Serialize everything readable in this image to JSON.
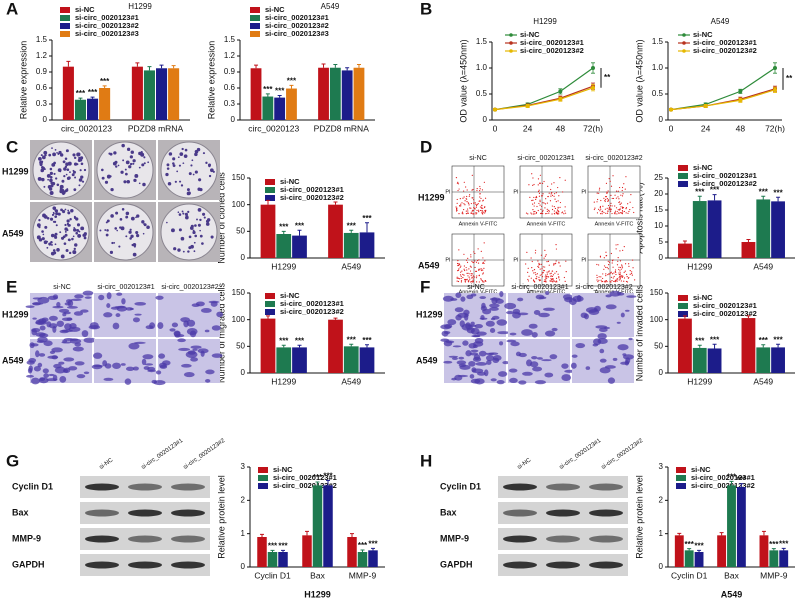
{
  "figure": {
    "panel_labels": [
      "A",
      "B",
      "C",
      "D",
      "E",
      "F",
      "G",
      "H"
    ],
    "colony_panel": {
      "rows": [
        "H1299",
        "A549"
      ]
    },
    "flow_panel": {
      "columns": [
        "si-NC",
        "si-circ_0020123#1",
        "si-circ_0020123#2"
      ],
      "rows": [
        "H1299",
        "A549"
      ],
      "x_axis": "Annexin V-FITC",
      "y_axis": "PI"
    },
    "migration_panel": {
      "columns": [
        "si-NC",
        "si-circ_0020123#1",
        "si-circ_0020123#2"
      ],
      "rows": [
        "H1299",
        "A549"
      ]
    },
    "invasion_panel": {
      "columns": [
        "si-NC",
        "si-circ_0020123#1",
        "si-circ_0020123#2"
      ],
      "rows": [
        "H1299",
        "A549"
      ]
    },
    "blot_panels": [
      {
        "lanes": [
          "si-NC",
          "si-circ_0020123#1",
          "si-circ_0020123#2"
        ],
        "proteins": [
          "Cyclin D1",
          "Bax",
          "MMP-9",
          "GAPDH"
        ]
      },
      {
        "lanes": [
          "si-NC",
          "si-circ_0020123#1",
          "si-circ_0020123#2"
        ],
        "proteins": [
          "Cyclin D1",
          "Bax",
          "MMP-9",
          "GAPDH"
        ]
      }
    ]
  },
  "chart_data": [
    {
      "type": "bar",
      "title": "H1299",
      "ylabel": "Relative expression",
      "categories": [
        "circ_0020123",
        "PDZD8 mRNA"
      ],
      "ylim": [
        0,
        1.5
      ],
      "yticks": [
        0,
        0.3,
        0.6,
        0.9,
        1.2,
        1.5
      ],
      "series": [
        {
          "name": "si-NC",
          "color": "#c0121a",
          "values": [
            1.0,
            1.0
          ],
          "errors": [
            0.1,
            0.07
          ]
        },
        {
          "name": "si-circ_0020123#1",
          "color": "#1e7a50",
          "values": [
            0.38,
            0.93
          ],
          "errors": [
            0.03,
            0.07
          ],
          "significance": [
            "***",
            null
          ]
        },
        {
          "name": "si-circ_0020123#2",
          "color": "#1c1c8a",
          "values": [
            0.4,
            0.97
          ],
          "errors": [
            0.03,
            0.06
          ],
          "significance": [
            "***",
            null
          ]
        },
        {
          "name": "si-circ_0020123#3",
          "color": "#e07b14",
          "values": [
            0.6,
            0.97
          ],
          "errors": [
            0.04,
            0.05
          ],
          "significance": [
            "***",
            null
          ]
        }
      ]
    },
    {
      "type": "bar",
      "title": "A549",
      "ylabel": "Relative expression",
      "categories": [
        "circ_0020123",
        "PDZD8 mRNA"
      ],
      "ylim": [
        0,
        1.5
      ],
      "yticks": [
        0,
        0.3,
        0.6,
        0.9,
        1.2,
        1.5
      ],
      "series": [
        {
          "name": "si-NC",
          "color": "#c0121a",
          "values": [
            0.97,
            0.98
          ],
          "errors": [
            0.06,
            0.07
          ]
        },
        {
          "name": "si-circ_0020123#1",
          "color": "#1e7a50",
          "values": [
            0.44,
            0.98
          ],
          "errors": [
            0.05,
            0.06
          ],
          "significance": [
            "***",
            null
          ]
        },
        {
          "name": "si-circ_0020123#2",
          "color": "#1c1c8a",
          "values": [
            0.42,
            0.93
          ],
          "errors": [
            0.04,
            0.05
          ],
          "significance": [
            "***",
            null
          ]
        },
        {
          "name": "si-circ_0020123#3",
          "color": "#e07b14",
          "values": [
            0.59,
            0.98
          ],
          "errors": [
            0.06,
            0.06
          ],
          "significance": [
            "***",
            null
          ]
        }
      ]
    },
    {
      "type": "line",
      "title": "H1299",
      "ylabel": "OD value (λ=450nm)",
      "categories": [
        "0",
        "24",
        "48",
        "72(h)"
      ],
      "ylim": [
        0,
        1.5
      ],
      "yticks": [
        0,
        0.5,
        {
          "value": 1.0,
          "label": "1.0"
        },
        1.5
      ],
      "annotation": "**",
      "series": [
        {
          "name": "si-NC",
          "color": "#2e8b3a",
          "values": [
            0.2,
            0.3,
            0.55,
            1.0
          ],
          "errors": [
            0.02,
            0.03,
            0.05,
            0.1
          ]
        },
        {
          "name": "si-circ_0020123#1",
          "color": "#b8321e",
          "values": [
            0.2,
            0.28,
            0.42,
            0.65
          ],
          "errors": [
            0.02,
            0.03,
            0.04,
            0.06
          ]
        },
        {
          "name": "si-circ_0020123#2",
          "color": "#e6b800",
          "values": [
            0.2,
            0.27,
            0.4,
            0.62
          ],
          "errors": [
            0.02,
            0.03,
            0.04,
            0.06
          ]
        }
      ]
    },
    {
      "type": "line",
      "title": "A549",
      "ylabel": "OD value (λ=450nm)",
      "categories": [
        "0",
        "24",
        "48",
        "72(h)"
      ],
      "ylim": [
        0,
        1.5
      ],
      "yticks": [
        0,
        0.5,
        {
          "value": 1.0,
          "label": "1.0"
        },
        1.5
      ],
      "annotation": "**",
      "series": [
        {
          "name": "si-NC",
          "color": "#2e8b3a",
          "values": [
            0.2,
            0.3,
            0.55,
            1.0
          ],
          "errors": [
            0.02,
            0.03,
            0.04,
            0.1
          ]
        },
        {
          "name": "si-circ_0020123#1",
          "color": "#b8321e",
          "values": [
            0.2,
            0.27,
            0.4,
            0.6
          ],
          "errors": [
            0.02,
            0.03,
            0.04,
            0.05
          ]
        },
        {
          "name": "si-circ_0020123#2",
          "color": "#e6b800",
          "values": [
            0.2,
            0.27,
            0.38,
            0.58
          ],
          "errors": [
            0.02,
            0.03,
            0.04,
            0.05
          ]
        }
      ]
    },
    {
      "type": "bar",
      "ylabel": "Number of cloned cells",
      "categories": [
        "H1299",
        "A549"
      ],
      "ylim": [
        0,
        150
      ],
      "yticks": [
        0,
        50,
        100,
        150
      ],
      "series": [
        {
          "name": "si-NC",
          "color": "#c0121a",
          "values": [
            100,
            100
          ],
          "errors": [
            8,
            5
          ]
        },
        {
          "name": "si-circ_0020123#1",
          "color": "#1e7a50",
          "values": [
            45,
            47
          ],
          "errors": [
            5,
            5
          ],
          "significance": [
            "***",
            "***"
          ]
        },
        {
          "name": "si-circ_0020123#2",
          "color": "#1c1c8a",
          "values": [
            42,
            48
          ],
          "errors": [
            10,
            18
          ],
          "significance": [
            "***",
            "***"
          ]
        }
      ]
    },
    {
      "type": "bar",
      "ylabel": "Apoptosis rate(%)",
      "categories": [
        "H1299",
        "A549"
      ],
      "ylim": [
        0,
        25
      ],
      "yticks": [
        0,
        5,
        10,
        15,
        20,
        25
      ],
      "series": [
        {
          "name": "si-NC",
          "color": "#c0121a",
          "values": [
            4.5,
            5.0
          ],
          "errors": [
            0.8,
            0.8
          ]
        },
        {
          "name": "si-circ_0020123#1",
          "color": "#1e7a50",
          "values": [
            17.8,
            18.3
          ],
          "errors": [
            1.5,
            1.0
          ],
          "significance": [
            "***",
            "***"
          ]
        },
        {
          "name": "si-circ_0020123#2",
          "color": "#1c1c8a",
          "values": [
            18.0,
            17.7
          ],
          "errors": [
            1.8,
            1.3
          ],
          "significance": [
            "***",
            "***"
          ]
        }
      ]
    },
    {
      "type": "bar",
      "ylabel": "Number of migrated cells",
      "categories": [
        "H1299",
        "A549"
      ],
      "ylim": [
        0,
        150
      ],
      "yticks": [
        0,
        50,
        100,
        150
      ],
      "series": [
        {
          "name": "si-NC",
          "color": "#c0121a",
          "values": [
            102,
            100
          ],
          "errors": [
            5,
            3
          ]
        },
        {
          "name": "si-circ_0020123#1",
          "color": "#1e7a50",
          "values": [
            48,
            50
          ],
          "errors": [
            4,
            4
          ],
          "significance": [
            "***",
            "***"
          ]
        },
        {
          "name": "si-circ_0020123#2",
          "color": "#1c1c8a",
          "values": [
            48,
            48
          ],
          "errors": [
            4,
            5
          ],
          "significance": [
            "***",
            "***"
          ]
        }
      ]
    },
    {
      "type": "bar",
      "ylabel": "Number of invaded cells",
      "categories": [
        "H1299",
        "A549"
      ],
      "ylim": [
        0,
        150
      ],
      "yticks": [
        0,
        50,
        100,
        150
      ],
      "series": [
        {
          "name": "si-NC",
          "color": "#c0121a",
          "values": [
            102,
            103
          ],
          "errors": [
            5,
            4
          ]
        },
        {
          "name": "si-circ_0020123#1",
          "color": "#1e7a50",
          "values": [
            47,
            48
          ],
          "errors": [
            5,
            5
          ],
          "significance": [
            "***",
            "***"
          ]
        },
        {
          "name": "si-circ_0020123#2",
          "color": "#1c1c8a",
          "values": [
            46,
            48
          ],
          "errors": [
            8,
            6
          ],
          "significance": [
            "***",
            "***"
          ]
        }
      ]
    },
    {
      "type": "bar",
      "ylabel": "Relative  protein level",
      "xlabel": "H1299",
      "categories": [
        "Cyclin D1",
        "Bax",
        "MMP-9"
      ],
      "ylim": [
        0,
        3
      ],
      "yticks": [
        0,
        1,
        2,
        3
      ],
      "series": [
        {
          "name": "si-NC",
          "color": "#c0121a",
          "values": [
            0.9,
            0.95,
            0.9
          ],
          "errors": [
            0.08,
            0.12,
            0.1
          ]
        },
        {
          "name": "si-circ_0020123#1",
          "color": "#1e7a50",
          "values": [
            0.45,
            2.45,
            0.45
          ],
          "errors": [
            0.05,
            0.1,
            0.06
          ],
          "significance": [
            "***",
            "***",
            "***"
          ]
        },
        {
          "name": "si-circ_0020123#2",
          "color": "#1c1c8a",
          "values": [
            0.45,
            2.45,
            0.5
          ],
          "errors": [
            0.05,
            0.15,
            0.06
          ],
          "significance": [
            "***",
            "***",
            "***"
          ]
        }
      ]
    },
    {
      "type": "bar",
      "ylabel": "Relative  protein level",
      "xlabel": "A549",
      "categories": [
        "Cyclin D1",
        "Bax",
        "MMP-9"
      ],
      "ylim": [
        0,
        3
      ],
      "yticks": [
        0,
        1,
        2,
        3
      ],
      "series": [
        {
          "name": "si-NC",
          "color": "#c0121a",
          "values": [
            0.95,
            0.95,
            0.95
          ],
          "errors": [
            0.06,
            0.08,
            0.12
          ]
        },
        {
          "name": "si-circ_0020123#1",
          "color": "#1e7a50",
          "values": [
            0.5,
            2.45,
            0.5
          ],
          "errors": [
            0.05,
            0.12,
            0.05
          ],
          "significance": [
            "***",
            "***",
            "***"
          ]
        },
        {
          "name": "si-circ_0020123#2",
          "color": "#1c1c8a",
          "values": [
            0.45,
            2.4,
            0.5
          ],
          "errors": [
            0.05,
            0.1,
            0.06
          ],
          "significance": [
            "***",
            "***",
            "***"
          ]
        }
      ]
    }
  ]
}
